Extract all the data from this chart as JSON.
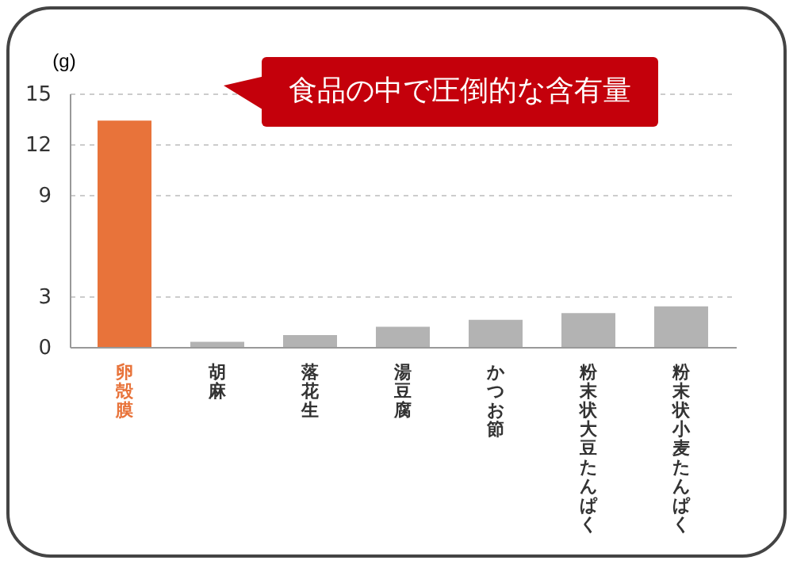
{
  "chart_data": {
    "type": "bar",
    "ylabel": "(g)",
    "categories": [
      "卵殻膜",
      "胡麻",
      "落花生",
      "湯豆腐",
      "かつお節",
      "粉末状大豆たんぱく",
      "粉末状小麦たんぱく"
    ],
    "values": [
      13.4,
      0.3,
      0.7,
      1.2,
      1.6,
      2.0,
      2.4
    ],
    "colors": [
      "#e8733a",
      "#b3b3b3",
      "#b3b3b3",
      "#b3b3b3",
      "#b3b3b3",
      "#b3b3b3",
      "#b3b3b3"
    ],
    "ylim": [
      0,
      15
    ],
    "yticks": [
      0,
      3,
      9,
      12,
      15
    ],
    "grid": "y",
    "annotations": [
      "食品の中で圧倒的な含有量"
    ]
  }
}
